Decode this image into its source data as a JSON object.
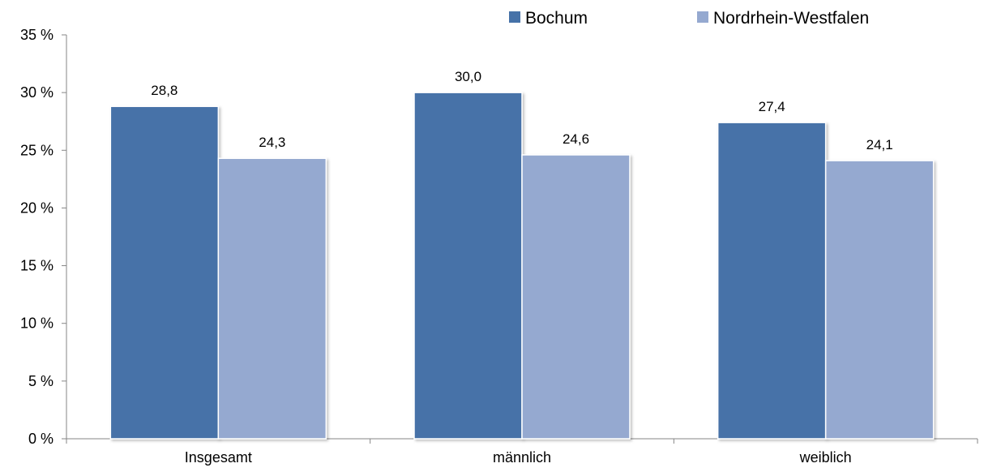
{
  "chart_data": {
    "type": "bar",
    "categories": [
      "Insgesamt",
      "männlich",
      "weiblich"
    ],
    "series": [
      {
        "name": "Bochum",
        "values": [
          28.8,
          30.0,
          27.4
        ],
        "labels": [
          "28,8",
          "30,0",
          "27,4"
        ],
        "color": "#4672A8"
      },
      {
        "name": "Nordrhein-Westfalen",
        "values": [
          24.3,
          24.6,
          24.1
        ],
        "labels": [
          "24,3",
          "24,6",
          "24,1"
        ],
        "color": "#95A9D0"
      }
    ],
    "ylim": [
      0,
      35
    ],
    "yticks": [
      0,
      5,
      10,
      15,
      20,
      25,
      30,
      35
    ],
    "ytick_labels": [
      "0 %",
      "5 %",
      "10 %",
      "15 %",
      "20 %",
      "25 %",
      "30 %",
      "35 %"
    ],
    "title": "",
    "xlabel": "",
    "ylabel": "",
    "grid": false,
    "legend_position": "top-right"
  }
}
